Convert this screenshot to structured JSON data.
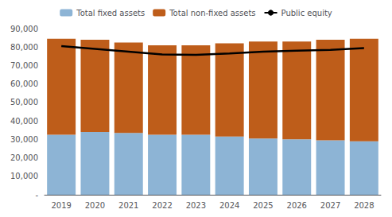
{
  "chart_data": {
    "type": "bar",
    "stacked": true,
    "grid": false,
    "legend": "top",
    "categories": [
      "2019",
      "2020",
      "2021",
      "2022",
      "2023",
      "2024",
      "2025",
      "2026",
      "2027",
      "2028"
    ],
    "series": [
      {
        "name": "Total fixed assets",
        "type": "bar",
        "color": "#8DB4D5",
        "values": [
          32500,
          34000,
          33500,
          32500,
          32500,
          31500,
          30500,
          30000,
          29500,
          29000
        ]
      },
      {
        "name": "Total non-fixed assets",
        "type": "bar",
        "color": "#BE5D1A",
        "values": [
          52000,
          50000,
          49000,
          48500,
          48500,
          50500,
          52500,
          53000,
          54500,
          55500
        ]
      },
      {
        "name": "Public equity",
        "type": "line",
        "color": "#000000",
        "values": [
          80500,
          79000,
          77500,
          76000,
          75800,
          76500,
          77500,
          78000,
          78500,
          79500
        ]
      }
    ],
    "ylim": [
      0,
      90000
    ],
    "yticks": [
      {
        "value": 0,
        "label": "-"
      },
      {
        "value": 10000,
        "label": "10,000"
      },
      {
        "value": 20000,
        "label": "20,000"
      },
      {
        "value": 30000,
        "label": "30,000"
      },
      {
        "value": 40000,
        "label": "40,000"
      },
      {
        "value": 50000,
        "label": "50,000"
      },
      {
        "value": 60000,
        "label": "60,000"
      },
      {
        "value": 70000,
        "label": "70,000"
      },
      {
        "value": 80000,
        "label": "80,000"
      },
      {
        "value": 90000,
        "label": "90,000"
      }
    ]
  }
}
